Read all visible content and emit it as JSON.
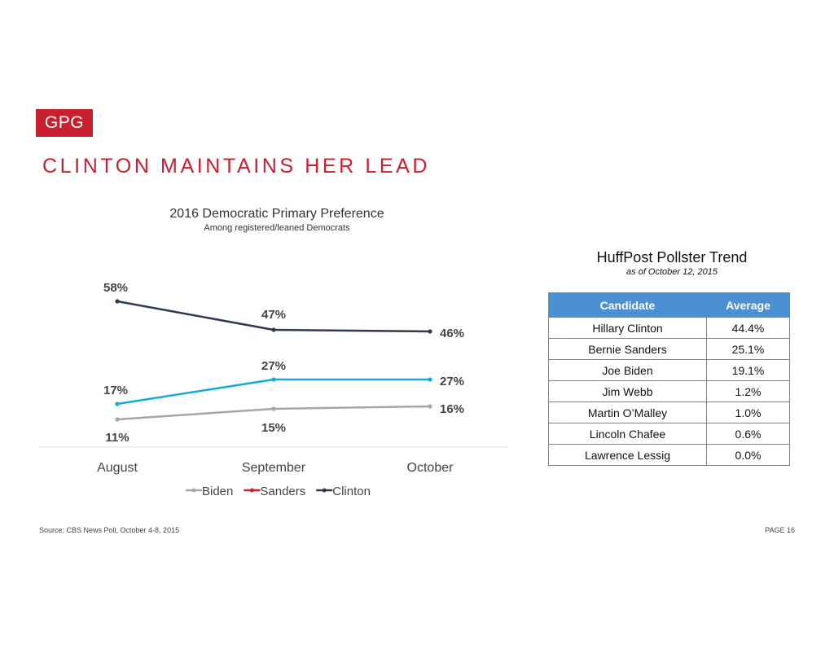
{
  "logo": "GPG",
  "headline": "CLINTON MAINTAINS HER LEAD",
  "chart_data": {
    "type": "line",
    "title": "2016 Democratic Primary Preference",
    "subtitle": "Among registered/leaned Democrats",
    "categories": [
      "August",
      "September",
      "October"
    ],
    "ylim": [
      0,
      70
    ],
    "grid": false,
    "legend_position": "bottom",
    "series": [
      {
        "name": "Biden",
        "color": "#a6a6a6",
        "values": [
          11,
          15,
          16
        ],
        "labels": [
          "11%",
          "15%",
          "16%"
        ]
      },
      {
        "name": "Sanders",
        "color": "#1aa7df",
        "legend_color": "#c8202f",
        "values": [
          17,
          27,
          27
        ],
        "labels": [
          "17%",
          "27%",
          "27%"
        ]
      },
      {
        "name": "Clinton",
        "color": "#2e3b4e",
        "values": [
          58,
          47,
          46
        ],
        "labels": [
          "58%",
          "47%",
          "46%"
        ]
      }
    ]
  },
  "table": {
    "title": "HuffPost Pollster Trend",
    "subtitle": "as of October 12, 2015",
    "headers": [
      "Candidate",
      "Average"
    ],
    "rows": [
      [
        "Hillary Clinton",
        "44.4%"
      ],
      [
        "Bernie Sanders",
        "25.1%"
      ],
      [
        "Joe Biden",
        "19.1%"
      ],
      [
        "Jim Webb",
        "1.2%"
      ],
      [
        "Martin O’Malley",
        "1.0%"
      ],
      [
        "Lincoln Chafee",
        "0.6%"
      ],
      [
        "Lawrence Lessig",
        "0.0%"
      ]
    ]
  },
  "footer": {
    "source": "Source: CBS News Poll, October 4-8, 2015",
    "page": "PAGE 16"
  }
}
